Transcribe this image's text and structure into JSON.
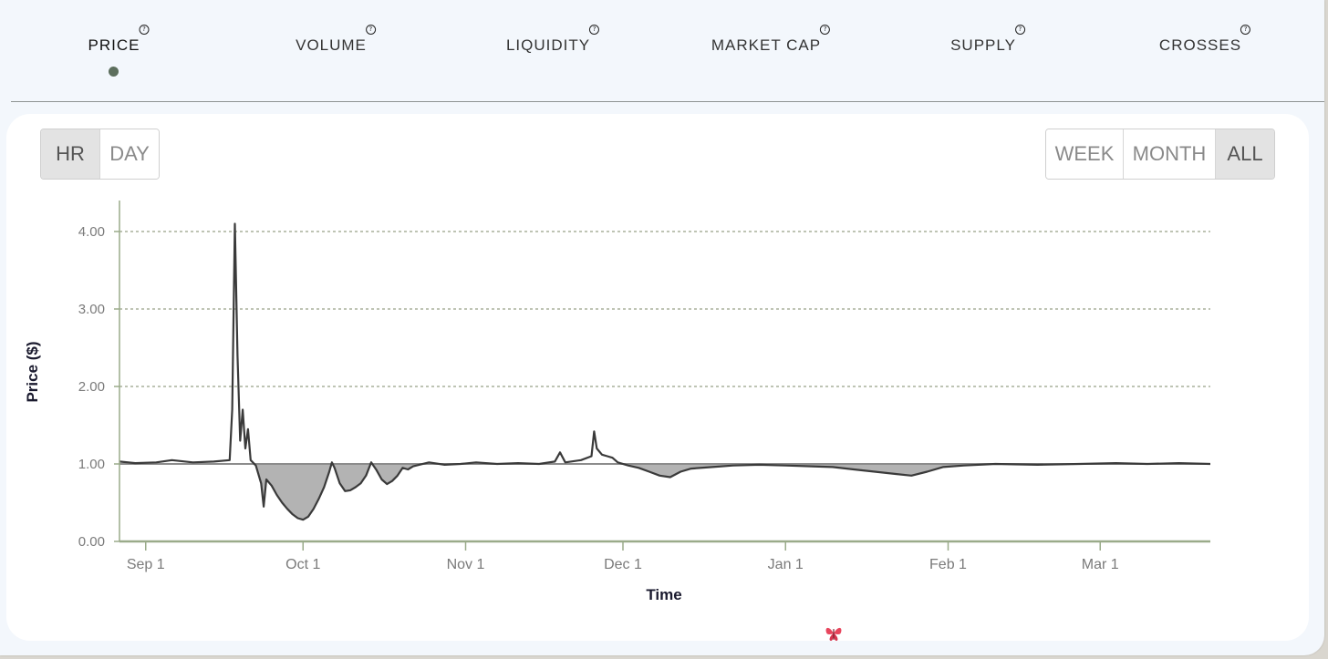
{
  "tabs": [
    {
      "label": "PRICE",
      "active": true
    },
    {
      "label": "VOLUME",
      "active": false
    },
    {
      "label": "LIQUIDITY",
      "active": false
    },
    {
      "label": "MARKET CAP",
      "active": false
    },
    {
      "label": "SUPPLY",
      "active": false
    },
    {
      "label": "CROSSES",
      "active": false
    }
  ],
  "help_glyph": "?",
  "granularity": {
    "options": [
      "HR",
      "DAY"
    ],
    "selected": "HR"
  },
  "range": {
    "options": [
      "WEEK",
      "MONTH",
      "ALL"
    ],
    "selected": "ALL"
  },
  "colors": {
    "line": "#3a3a3a",
    "fill": "#b3b3b3",
    "grid": "#7c8a6a",
    "axis": "#9aab8a",
    "baseline": "#8c8c8c",
    "active_dot": "#5c6e5d"
  },
  "icons": {
    "bottom": "butterfly-icon"
  },
  "chart_data": {
    "type": "line",
    "xlabel": "Time",
    "ylabel": "Price ($)",
    "ylim": [
      0,
      4.4
    ],
    "yticks": [
      0,
      1,
      2,
      3,
      4
    ],
    "ytick_labels": [
      "0.00",
      "1.00",
      "2.00",
      "3.00",
      "4.00"
    ],
    "xlim": [
      "2023-08-27",
      "2024-03-22"
    ],
    "xticks": [
      "2023-09-01",
      "2023-10-01",
      "2023-11-01",
      "2023-12-01",
      "2024-01-01",
      "2024-02-01",
      "2024-03-01"
    ],
    "xtick_labels": [
      "Sep 1",
      "Oct 1",
      "Nov 1",
      "Dec 1",
      "Jan 1",
      "Feb 1",
      "Mar 1"
    ],
    "baseline": 1.0,
    "fill_below_baseline": true,
    "grid": "horizontal-dashed",
    "series": [
      {
        "points": [
          [
            "2023-08-27",
            1.03
          ],
          [
            "2023-08-30",
            1.01
          ],
          [
            "2023-09-03",
            1.02
          ],
          [
            "2023-09-06",
            1.05
          ],
          [
            "2023-09-10",
            1.02
          ],
          [
            "2023-09-14",
            1.03
          ],
          [
            "2023-09-17",
            1.05
          ],
          [
            "2023-09-17T12:00",
            1.7
          ],
          [
            "2023-09-18",
            4.1
          ],
          [
            "2023-09-18T12:00",
            2.4
          ],
          [
            "2023-09-19",
            1.3
          ],
          [
            "2023-09-19T12:00",
            1.7
          ],
          [
            "2023-09-20",
            1.2
          ],
          [
            "2023-09-20T12:00",
            1.45
          ],
          [
            "2023-09-21",
            1.05
          ],
          [
            "2023-09-22",
            0.98
          ],
          [
            "2023-09-23",
            0.75
          ],
          [
            "2023-09-23T12:00",
            0.45
          ],
          [
            "2023-09-24",
            0.8
          ],
          [
            "2023-09-25",
            0.72
          ],
          [
            "2023-09-26",
            0.6
          ],
          [
            "2023-09-27",
            0.5
          ],
          [
            "2023-09-28",
            0.42
          ],
          [
            "2023-09-29",
            0.35
          ],
          [
            "2023-09-30",
            0.3
          ],
          [
            "2023-10-01",
            0.28
          ],
          [
            "2023-10-02",
            0.32
          ],
          [
            "2023-10-03",
            0.42
          ],
          [
            "2023-10-04",
            0.55
          ],
          [
            "2023-10-05",
            0.7
          ],
          [
            "2023-10-06",
            0.9
          ],
          [
            "2023-10-06T12:00",
            1.02
          ],
          [
            "2023-10-07",
            0.95
          ],
          [
            "2023-10-08",
            0.75
          ],
          [
            "2023-10-09",
            0.65
          ],
          [
            "2023-10-10",
            0.66
          ],
          [
            "2023-10-11",
            0.7
          ],
          [
            "2023-10-12",
            0.75
          ],
          [
            "2023-10-13",
            0.85
          ],
          [
            "2023-10-14",
            1.02
          ],
          [
            "2023-10-15",
            0.92
          ],
          [
            "2023-10-16",
            0.8
          ],
          [
            "2023-10-17",
            0.74
          ],
          [
            "2023-10-18",
            0.78
          ],
          [
            "2023-10-19",
            0.85
          ],
          [
            "2023-10-20",
            0.95
          ],
          [
            "2023-10-21",
            0.93
          ],
          [
            "2023-10-22",
            0.97
          ],
          [
            "2023-10-25",
            1.02
          ],
          [
            "2023-10-28",
            0.99
          ],
          [
            "2023-10-31",
            1.0
          ],
          [
            "2023-11-03",
            1.02
          ],
          [
            "2023-11-07",
            1.0
          ],
          [
            "2023-11-11",
            1.01
          ],
          [
            "2023-11-15",
            1.0
          ],
          [
            "2023-11-18",
            1.03
          ],
          [
            "2023-11-19",
            1.15
          ],
          [
            "2023-11-20",
            1.02
          ],
          [
            "2023-11-23",
            1.05
          ],
          [
            "2023-11-25",
            1.1
          ],
          [
            "2023-11-25T12:00",
            1.42
          ],
          [
            "2023-11-26",
            1.2
          ],
          [
            "2023-11-27",
            1.12
          ],
          [
            "2023-11-28",
            1.1
          ],
          [
            "2023-11-29",
            1.08
          ],
          [
            "2023-11-30",
            1.02
          ],
          [
            "2023-12-02",
            0.98
          ],
          [
            "2023-12-04",
            0.95
          ],
          [
            "2023-12-06",
            0.9
          ],
          [
            "2023-12-08",
            0.85
          ],
          [
            "2023-12-10",
            0.83
          ],
          [
            "2023-12-12",
            0.9
          ],
          [
            "2023-12-14",
            0.94
          ],
          [
            "2023-12-18",
            0.96
          ],
          [
            "2023-12-22",
            0.98
          ],
          [
            "2023-12-27",
            0.99
          ],
          [
            "2024-01-01",
            0.98
          ],
          [
            "2024-01-06",
            0.97
          ],
          [
            "2024-01-10",
            0.96
          ],
          [
            "2024-01-14",
            0.93
          ],
          [
            "2024-01-18",
            0.9
          ],
          [
            "2024-01-22",
            0.87
          ],
          [
            "2024-01-25",
            0.85
          ],
          [
            "2024-01-28",
            0.9
          ],
          [
            "2024-01-31",
            0.96
          ],
          [
            "2024-02-04",
            0.98
          ],
          [
            "2024-02-10",
            1.0
          ],
          [
            "2024-02-18",
            0.99
          ],
          [
            "2024-02-26",
            1.0
          ],
          [
            "2024-03-04",
            1.01
          ],
          [
            "2024-03-10",
            1.0
          ],
          [
            "2024-03-16",
            1.01
          ],
          [
            "2024-03-22",
            1.0
          ]
        ]
      }
    ]
  }
}
